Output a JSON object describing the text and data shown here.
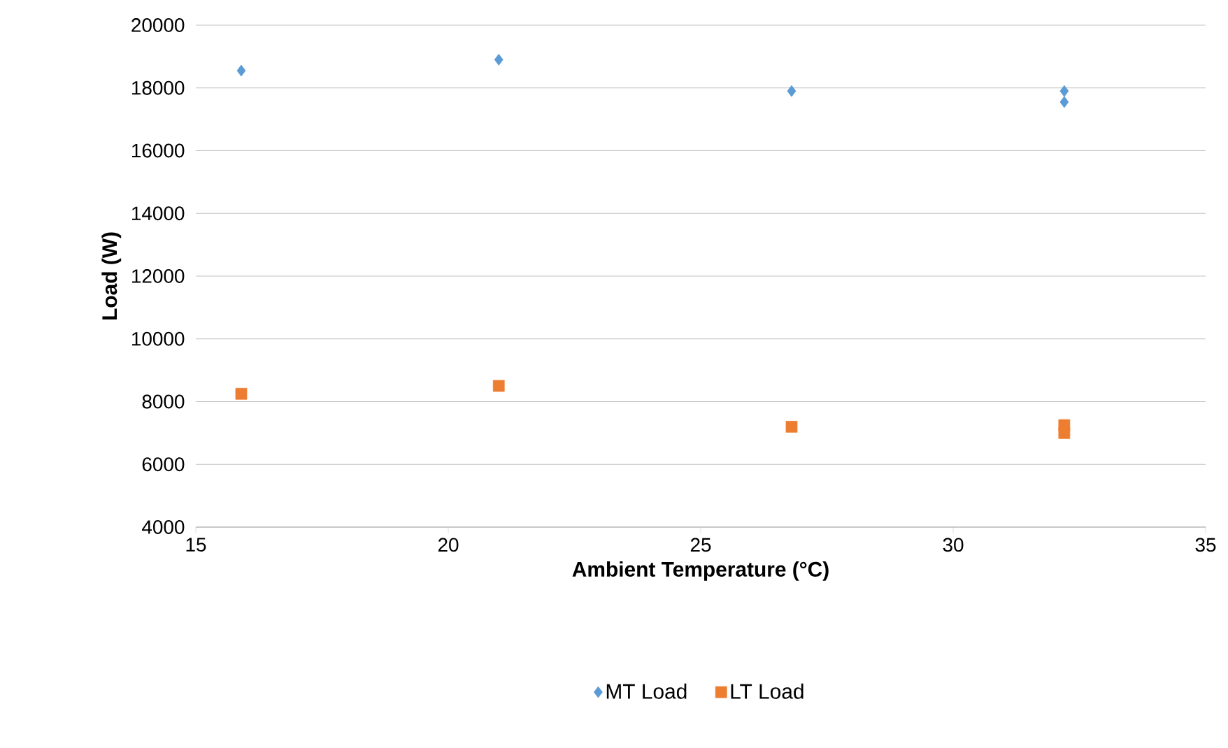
{
  "chart_data": {
    "type": "scatter",
    "xlabel": "Ambient Temperature (°C)",
    "ylabel": "Load (W)",
    "xlim": [
      15,
      35
    ],
    "xticks": [
      15,
      20,
      25,
      30,
      35
    ],
    "ylim": [
      4000,
      20000
    ],
    "yticks": [
      4000,
      6000,
      8000,
      10000,
      12000,
      14000,
      16000,
      18000,
      20000
    ],
    "grid": "y",
    "legend": "bottom",
    "series": [
      {
        "name": "MT Load",
        "color": "#5b9bd5",
        "marker": "diamond",
        "x": [
          15.9,
          21.0,
          26.8,
          32.2,
          32.2
        ],
        "values": [
          18550,
          18900,
          17900,
          17900,
          17550
        ]
      },
      {
        "name": "LT Load",
        "color": "#ed7d31",
        "marker": "square",
        "x": [
          15.9,
          21.0,
          26.8,
          32.2,
          32.2
        ],
        "values": [
          8250,
          8500,
          7200,
          7250,
          7000
        ]
      }
    ]
  }
}
